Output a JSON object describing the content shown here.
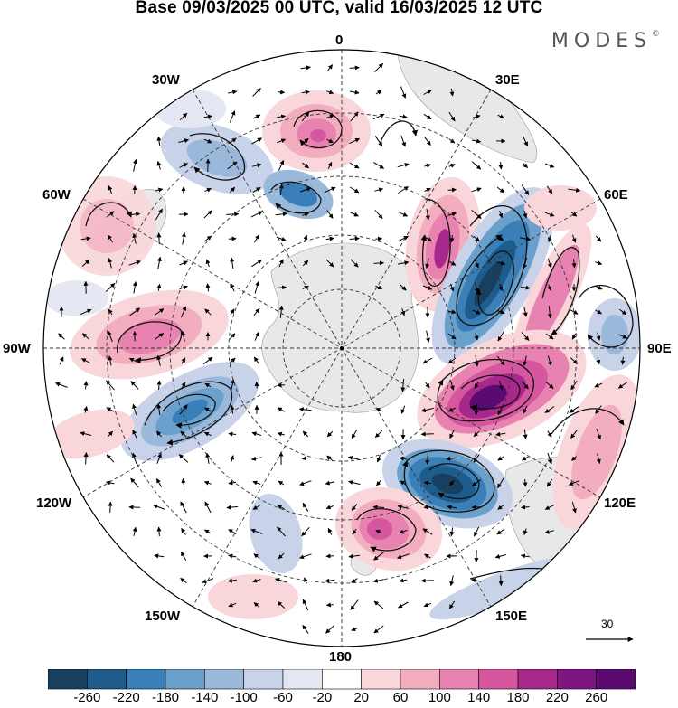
{
  "title": "Base 09/03/2025 00 UTC, valid 16/03/2025 12 UTC",
  "brand": {
    "name": "MODES",
    "mark": "©"
  },
  "longitude_labels": {
    "lon_0": "0",
    "lon_30e": "30E",
    "lon_60e": "60E",
    "lon_90e": "90E",
    "lon_120e": "120E",
    "lon_150e": "150E",
    "lon_180": "180",
    "lon_150w": "150W",
    "lon_120w": "120W",
    "lon_90w": "90W",
    "lon_60w": "60W",
    "lon_30w": "30W"
  },
  "reference_vector": {
    "label": "30"
  },
  "colorbar": {
    "labels": [
      "-260",
      "-220",
      "-180",
      "-140",
      "-100",
      "-60",
      "-20",
      "20",
      "60",
      "100",
      "140",
      "180",
      "220",
      "260"
    ],
    "colors": [
      "#173f5f",
      "#1e5c8c",
      "#3a7fb8",
      "#6aa0cc",
      "#9ab8da",
      "#c8d2e8",
      "#e5e8f3",
      "#ffffff",
      "#f8d6d9",
      "#f2aebf",
      "#e882b0",
      "#d656a0",
      "#a5288a",
      "#7e1480",
      "#5a0a70"
    ]
  },
  "map": {
    "projection": "south-polar-stereographic",
    "anomaly_centers": [
      {
        "id": "pos-0",
        "value": 200
      },
      {
        "id": "neg-30w",
        "value": -140
      },
      {
        "id": "neg-40w",
        "value": -180
      },
      {
        "id": "pos-60w",
        "value": 80
      },
      {
        "id": "pos-40e",
        "value": 220
      },
      {
        "id": "neg-60e",
        "value": -280
      },
      {
        "id": "pos-70e",
        "value": 120
      },
      {
        "id": "neg-80e",
        "value": -140
      },
      {
        "id": "pos-100e",
        "value": 280
      },
      {
        "id": "neg-130e",
        "value": -280
      },
      {
        "id": "pos-160e",
        "value": 200
      },
      {
        "id": "pos-90w",
        "value": 160
      },
      {
        "id": "neg-110w",
        "value": -200
      },
      {
        "id": "neg-150w",
        "value": -80
      },
      {
        "id": "pos-120e-edge",
        "value": 100
      },
      {
        "id": "neg-170e-edge",
        "value": -60
      }
    ]
  }
}
